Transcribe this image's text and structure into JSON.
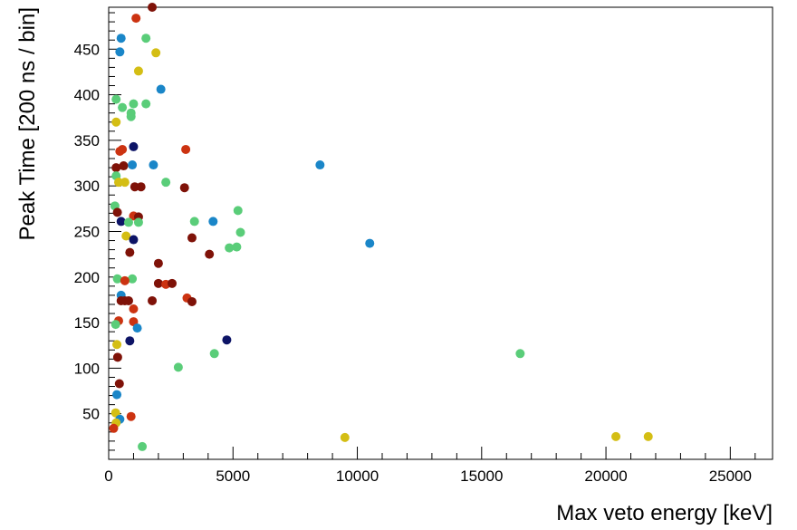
{
  "chart_data": {
    "type": "scatter",
    "xlabel": "Max veto energy [keV]",
    "ylabel": "Peak Time [200 ns / bin]",
    "xlim": [
      0,
      26700
    ],
    "ylim": [
      0,
      496
    ],
    "x_ticks": [
      0,
      5000,
      10000,
      15000,
      20000,
      25000
    ],
    "x_tick_labels": [
      "0",
      "5000",
      "10000",
      "15000",
      "20000",
      "25000"
    ],
    "y_ticks": [
      50,
      100,
      150,
      200,
      250,
      300,
      350,
      400,
      450
    ],
    "y_tick_labels": [
      "50",
      "100",
      "150",
      "200",
      "250",
      "300",
      "350",
      "400",
      "450"
    ],
    "grid": false,
    "colors": {
      "navy": "#0d1466",
      "blue": "#1a86c8",
      "green": "#5acd79",
      "yellow": "#d4be14",
      "red": "#cc3311",
      "darkred": "#7f1208"
    },
    "points": [
      {
        "x": 1750,
        "y": 496,
        "c": "darkred"
      },
      {
        "x": 1100,
        "y": 484,
        "c": "red"
      },
      {
        "x": 500,
        "y": 462,
        "c": "blue"
      },
      {
        "x": 1500,
        "y": 462,
        "c": "green"
      },
      {
        "x": 450,
        "y": 447,
        "c": "blue"
      },
      {
        "x": 1900,
        "y": 446,
        "c": "yellow"
      },
      {
        "x": 1200,
        "y": 426,
        "c": "yellow"
      },
      {
        "x": 2100,
        "y": 406,
        "c": "blue"
      },
      {
        "x": 300,
        "y": 395,
        "c": "green"
      },
      {
        "x": 1500,
        "y": 390,
        "c": "green"
      },
      {
        "x": 1000,
        "y": 390,
        "c": "green"
      },
      {
        "x": 550,
        "y": 386,
        "c": "green"
      },
      {
        "x": 900,
        "y": 380,
        "c": "green"
      },
      {
        "x": 900,
        "y": 376,
        "c": "green"
      },
      {
        "x": 300,
        "y": 370,
        "c": "yellow"
      },
      {
        "x": 1000,
        "y": 343,
        "c": "navy"
      },
      {
        "x": 3100,
        "y": 340,
        "c": "red"
      },
      {
        "x": 550,
        "y": 340,
        "c": "red"
      },
      {
        "x": 450,
        "y": 338,
        "c": "red"
      },
      {
        "x": 8500,
        "y": 323,
        "c": "blue"
      },
      {
        "x": 1800,
        "y": 323,
        "c": "blue"
      },
      {
        "x": 950,
        "y": 323,
        "c": "blue"
      },
      {
        "x": 600,
        "y": 322,
        "c": "darkred"
      },
      {
        "x": 300,
        "y": 320,
        "c": "darkred"
      },
      {
        "x": 300,
        "y": 311,
        "c": "green"
      },
      {
        "x": 2300,
        "y": 304,
        "c": "green"
      },
      {
        "x": 400,
        "y": 304,
        "c": "yellow"
      },
      {
        "x": 650,
        "y": 304,
        "c": "yellow"
      },
      {
        "x": 1050,
        "y": 299,
        "c": "darkred"
      },
      {
        "x": 1300,
        "y": 299,
        "c": "darkred"
      },
      {
        "x": 3050,
        "y": 298,
        "c": "darkred"
      },
      {
        "x": 250,
        "y": 278,
        "c": "green"
      },
      {
        "x": 350,
        "y": 271,
        "c": "darkred"
      },
      {
        "x": 1000,
        "y": 267,
        "c": "red"
      },
      {
        "x": 1200,
        "y": 266,
        "c": "darkred"
      },
      {
        "x": 5200,
        "y": 273,
        "c": "green"
      },
      {
        "x": 500,
        "y": 261,
        "c": "navy"
      },
      {
        "x": 800,
        "y": 260,
        "c": "green"
      },
      {
        "x": 1200,
        "y": 260,
        "c": "green"
      },
      {
        "x": 3450,
        "y": 261,
        "c": "green"
      },
      {
        "x": 4200,
        "y": 261,
        "c": "blue"
      },
      {
        "x": 5300,
        "y": 249,
        "c": "green"
      },
      {
        "x": 700,
        "y": 245,
        "c": "yellow"
      },
      {
        "x": 1000,
        "y": 241,
        "c": "navy"
      },
      {
        "x": 3350,
        "y": 243,
        "c": "darkred"
      },
      {
        "x": 10500,
        "y": 237,
        "c": "blue"
      },
      {
        "x": 4850,
        "y": 232,
        "c": "green"
      },
      {
        "x": 5150,
        "y": 233,
        "c": "green"
      },
      {
        "x": 850,
        "y": 227,
        "c": "darkred"
      },
      {
        "x": 4050,
        "y": 225,
        "c": "darkred"
      },
      {
        "x": 2000,
        "y": 215,
        "c": "darkred"
      },
      {
        "x": 350,
        "y": 198,
        "c": "green"
      },
      {
        "x": 950,
        "y": 198,
        "c": "green"
      },
      {
        "x": 650,
        "y": 196,
        "c": "red"
      },
      {
        "x": 2000,
        "y": 193,
        "c": "darkred"
      },
      {
        "x": 2300,
        "y": 192,
        "c": "red"
      },
      {
        "x": 2550,
        "y": 193,
        "c": "darkred"
      },
      {
        "x": 500,
        "y": 180,
        "c": "blue"
      },
      {
        "x": 3150,
        "y": 177,
        "c": "red"
      },
      {
        "x": 500,
        "y": 174,
        "c": "darkred"
      },
      {
        "x": 650,
        "y": 174,
        "c": "darkred"
      },
      {
        "x": 800,
        "y": 174,
        "c": "darkred"
      },
      {
        "x": 1750,
        "y": 174,
        "c": "darkred"
      },
      {
        "x": 3350,
        "y": 173,
        "c": "darkred"
      },
      {
        "x": 1000,
        "y": 165,
        "c": "red"
      },
      {
        "x": 400,
        "y": 152,
        "c": "red"
      },
      {
        "x": 1000,
        "y": 151,
        "c": "red"
      },
      {
        "x": 280,
        "y": 148,
        "c": "green"
      },
      {
        "x": 1150,
        "y": 144,
        "c": "blue"
      },
      {
        "x": 850,
        "y": 130,
        "c": "navy"
      },
      {
        "x": 4750,
        "y": 131,
        "c": "navy"
      },
      {
        "x": 330,
        "y": 126,
        "c": "yellow"
      },
      {
        "x": 360,
        "y": 112,
        "c": "darkred"
      },
      {
        "x": 4250,
        "y": 116,
        "c": "green"
      },
      {
        "x": 16550,
        "y": 116,
        "c": "green"
      },
      {
        "x": 2800,
        "y": 101,
        "c": "green"
      },
      {
        "x": 430,
        "y": 83,
        "c": "darkred"
      },
      {
        "x": 330,
        "y": 71,
        "c": "blue"
      },
      {
        "x": 280,
        "y": 51,
        "c": "yellow"
      },
      {
        "x": 900,
        "y": 47,
        "c": "red"
      },
      {
        "x": 450,
        "y": 44,
        "c": "blue"
      },
      {
        "x": 300,
        "y": 40,
        "c": "yellow"
      },
      {
        "x": 200,
        "y": 34,
        "c": "red"
      },
      {
        "x": 9500,
        "y": 24,
        "c": "yellow"
      },
      {
        "x": 20400,
        "y": 25,
        "c": "yellow"
      },
      {
        "x": 21700,
        "y": 25,
        "c": "yellow"
      },
      {
        "x": 1350,
        "y": 14,
        "c": "green"
      }
    ]
  }
}
